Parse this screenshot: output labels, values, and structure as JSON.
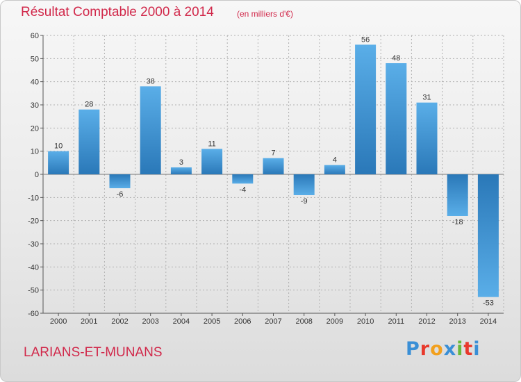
{
  "header": {
    "title": "Résultat Comptable 2000 à 2014",
    "unit": "(en milliers d'€)"
  },
  "footer": {
    "commune": "LARIANS-ET-MUNANS",
    "brand_letters": [
      "P",
      "r",
      "o",
      "x",
      "i",
      "t",
      "i"
    ],
    "brand_colors": [
      "#3a8fd6",
      "#e8392c",
      "#f2a01e",
      "#3a8fd6",
      "#68b93b",
      "#e8392c",
      "#3a8fd6"
    ]
  },
  "colors": {
    "title": "#d1284a",
    "bar_light": "#5aaee8",
    "bar_dark": "#2a78b8",
    "grid": "#b0b0b0",
    "axis": "#555555"
  },
  "chart_data": {
    "type": "bar",
    "title": "Résultat Comptable 2000 à 2014",
    "xlabel": "",
    "ylabel": "",
    "categories": [
      "2000",
      "2001",
      "2002",
      "2003",
      "2004",
      "2005",
      "2006",
      "2007",
      "2008",
      "2009",
      "2010",
      "2011",
      "2012",
      "2013",
      "2014"
    ],
    "values": [
      10,
      28,
      -6,
      38,
      3,
      11,
      -4,
      7,
      -9,
      4,
      56,
      48,
      31,
      -18,
      -53
    ],
    "ylim": [
      -60,
      60
    ],
    "yticks": [
      60,
      50,
      40,
      30,
      20,
      10,
      0,
      -10,
      -20,
      -30,
      -40,
      -50,
      -60
    ],
    "grid": true
  }
}
